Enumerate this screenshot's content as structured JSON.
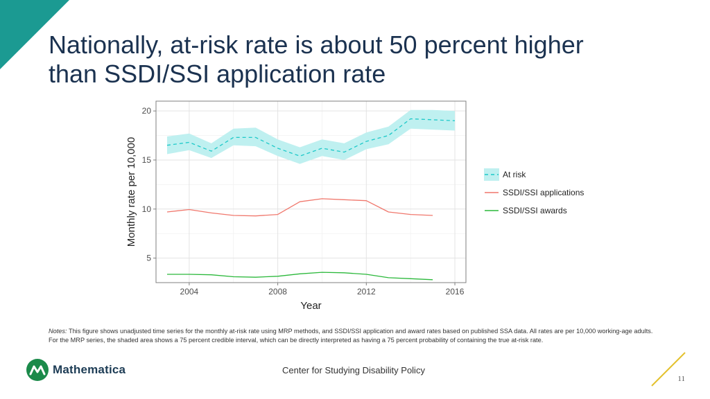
{
  "slide": {
    "title_line1": "Nationally, at-risk rate is about 50 percent higher",
    "title_line2": "than SSDI/SSI application rate",
    "notes_label": "Notes:",
    "notes_text": "This figure shows unadjusted time series for the monthly at-risk rate using MRP methods, and SSDI/SSI application and award rates based on published SSA data. All rates are per 10,000 working-age adults. For the MRP series, the shaded area shows a 75 percent credible interval, which can be directly interpreted as having a 75 percent probability of containing the true at-risk rate.",
    "footer_center": "Center for Studying Disability Policy",
    "logo_text": "Mathematica",
    "page_number": "11"
  },
  "colors": {
    "title": "#1b3250",
    "corner_teal": "#1b9a92",
    "accent_yellow": "#e3c12e",
    "at_risk": "#1dc9c9",
    "at_risk_band": "#bff0f0",
    "applications": "#f0776c",
    "awards": "#2ab83a",
    "logo_green": "#1b8a4a"
  },
  "chart_data": {
    "type": "line",
    "xlabel": "Year",
    "ylabel": "Monthly rate per 10,000",
    "xlim": [
      2002.5,
      2016.5
    ],
    "ylim": [
      2.5,
      21
    ],
    "xticks": [
      2004,
      2008,
      2012,
      2016
    ],
    "yticks": [
      5,
      10,
      15,
      20
    ],
    "grid": true,
    "legend_position": "right",
    "x": [
      2003,
      2004,
      2005,
      2006,
      2007,
      2008,
      2009,
      2010,
      2011,
      2012,
      2013,
      2014,
      2015,
      2016
    ],
    "series": [
      {
        "name": "At risk",
        "style": "dashed",
        "x": [
          2003,
          2004,
          2005,
          2006,
          2007,
          2008,
          2009,
          2010,
          2011,
          2012,
          2013,
          2014,
          2015,
          2016
        ],
        "values": [
          16.5,
          16.8,
          15.9,
          17.3,
          17.3,
          16.2,
          15.4,
          16.2,
          15.8,
          16.9,
          17.5,
          19.2,
          19.1,
          19.0
        ],
        "lower": [
          15.6,
          16.0,
          15.2,
          16.5,
          16.4,
          15.4,
          14.6,
          15.4,
          15.0,
          16.1,
          16.6,
          18.2,
          18.1,
          18.0
        ],
        "upper": [
          17.4,
          17.7,
          16.7,
          18.2,
          18.3,
          17.1,
          16.3,
          17.1,
          16.7,
          17.8,
          18.4,
          20.1,
          20.1,
          20.0
        ]
      },
      {
        "name": "SSDI/SSI applications",
        "style": "solid",
        "x": [
          2003,
          2004,
          2005,
          2006,
          2007,
          2008,
          2009,
          2010,
          2011,
          2012,
          2013,
          2014,
          2015
        ],
        "values": [
          9.7,
          9.95,
          9.6,
          9.35,
          9.3,
          9.45,
          10.75,
          11.05,
          10.95,
          10.85,
          9.7,
          9.45,
          9.35
        ]
      },
      {
        "name": "SSDI/SSI awards",
        "style": "solid",
        "x": [
          2003,
          2004,
          2005,
          2006,
          2007,
          2008,
          2009,
          2010,
          2011,
          2012,
          2013,
          2014,
          2015
        ],
        "values": [
          3.35,
          3.35,
          3.3,
          3.1,
          3.05,
          3.15,
          3.4,
          3.55,
          3.5,
          3.35,
          3.0,
          2.9,
          2.8
        ]
      }
    ]
  }
}
